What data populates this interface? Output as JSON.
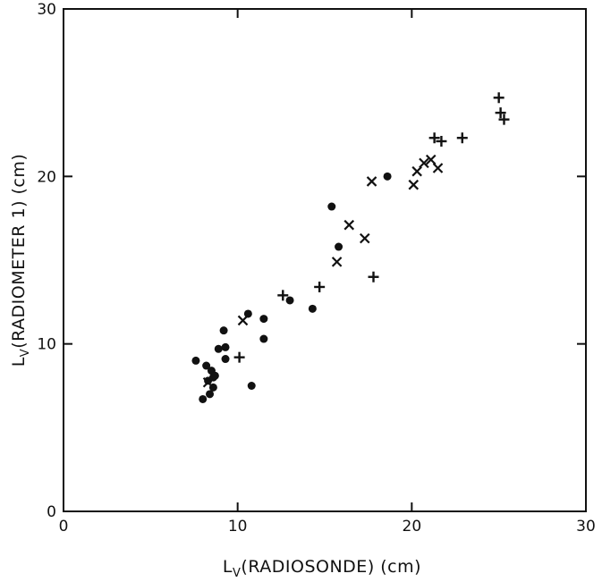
{
  "chart_data": {
    "type": "scatter",
    "xlabel": {
      "main": "L",
      "sub": "V",
      "rest": "(RADIOSONDE) (cm)"
    },
    "ylabel": {
      "main": "L",
      "sub": "V",
      "rest": "(RADIOMETER 1) (cm)"
    },
    "xlim": [
      0,
      30
    ],
    "ylim": [
      0,
      30
    ],
    "x_ticks": [
      "0",
      "10",
      "20",
      "30"
    ],
    "y_ticks": [
      "0",
      "10",
      "20",
      "30"
    ],
    "grid": false,
    "legend": "none",
    "series": [
      {
        "marker": "dot",
        "points": [
          [
            7.6,
            9.0
          ],
          [
            8.0,
            6.7
          ],
          [
            8.2,
            8.7
          ],
          [
            8.3,
            7.8
          ],
          [
            8.4,
            7.0
          ],
          [
            8.5,
            8.4
          ],
          [
            8.6,
            7.4
          ],
          [
            8.6,
            8.0
          ],
          [
            8.7,
            8.1
          ],
          [
            8.9,
            9.7
          ],
          [
            9.2,
            10.8
          ],
          [
            9.3,
            9.8
          ],
          [
            9.3,
            9.1
          ],
          [
            10.6,
            11.8
          ],
          [
            10.8,
            7.5
          ],
          [
            11.5,
            10.3
          ],
          [
            11.5,
            11.5
          ],
          [
            13.0,
            12.6
          ],
          [
            14.3,
            12.1
          ],
          [
            15.4,
            18.2
          ],
          [
            15.8,
            15.8
          ],
          [
            18.6,
            20.0
          ]
        ]
      },
      {
        "marker": "x",
        "points": [
          [
            8.3,
            7.7
          ],
          [
            10.3,
            11.4
          ],
          [
            15.7,
            14.9
          ],
          [
            16.4,
            17.1
          ],
          [
            17.3,
            16.3
          ],
          [
            17.7,
            19.7
          ],
          [
            20.1,
            19.5
          ],
          [
            20.3,
            20.3
          ],
          [
            20.7,
            20.8
          ],
          [
            21.1,
            21.0
          ],
          [
            21.5,
            20.5
          ]
        ]
      },
      {
        "marker": "plus",
        "points": [
          [
            10.1,
            9.2
          ],
          [
            12.6,
            12.9
          ],
          [
            14.7,
            13.4
          ],
          [
            17.8,
            14.0
          ],
          [
            21.3,
            22.3
          ],
          [
            21.7,
            22.1
          ],
          [
            22.9,
            22.3
          ],
          [
            25.0,
            24.7
          ],
          [
            25.1,
            23.8
          ],
          [
            25.3,
            23.4
          ]
        ]
      }
    ]
  }
}
